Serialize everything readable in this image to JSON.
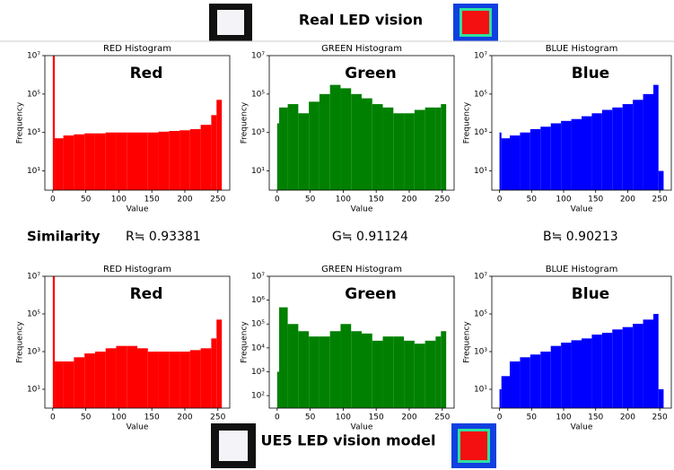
{
  "header": {
    "title": "Real LED vision"
  },
  "footer": {
    "title": "UE5 LED vision model"
  },
  "similarity": {
    "label": "Similarity",
    "values": [
      "R≒ 0.93381",
      "G≒ 0.91124",
      "B≒ 0.90213"
    ]
  },
  "chart_data": [
    {
      "type": "histogram",
      "title": "RED Histogram",
      "annotation": "Red",
      "annotation_color": "#e8141c",
      "color": "#ff0000",
      "xlabel": "Value",
      "ylabel": "Frequency",
      "log_y": true,
      "bins": [
        0,
        3,
        16,
        32,
        48,
        64,
        80,
        96,
        112,
        128,
        144,
        160,
        176,
        192,
        208,
        224,
        240,
        248,
        256
      ],
      "values": [
        10000000,
        500,
        700,
        800,
        900,
        900,
        1000,
        1000,
        1000,
        1000,
        1000,
        1100,
        1200,
        1300,
        1500,
        2500,
        8000,
        50000
      ],
      "xlim": [
        -12,
        268
      ],
      "xticks": [
        0,
        50,
        100,
        150,
        200,
        250
      ],
      "ylim": [
        1,
        10000000
      ],
      "yticks": [
        {
          "value": 10,
          "label": "10¹"
        },
        {
          "value": 1000,
          "label": "10³"
        },
        {
          "value": 100000,
          "label": "10⁵"
        },
        {
          "value": 10000000,
          "label": "10⁷"
        }
      ]
    },
    {
      "type": "histogram",
      "title": "GREEN Histogram",
      "annotation": "Green",
      "annotation_color": "#1aa04a",
      "color": "#008000",
      "xlabel": "Value",
      "ylabel": "Frequency",
      "log_y": true,
      "bins": [
        0,
        3,
        16,
        32,
        48,
        64,
        80,
        96,
        112,
        128,
        144,
        160,
        176,
        192,
        208,
        224,
        240,
        248,
        256
      ],
      "values": [
        3000,
        20000,
        30000,
        10000,
        40000,
        100000,
        300000,
        200000,
        100000,
        60000,
        30000,
        20000,
        10000,
        10000,
        15000,
        20000,
        20000,
        30000
      ],
      "xlim": [
        -12,
        268
      ],
      "xticks": [
        0,
        50,
        100,
        150,
        200,
        250
      ],
      "ylim": [
        1,
        10000000
      ],
      "yticks": [
        {
          "value": 10,
          "label": "10¹"
        },
        {
          "value": 1000,
          "label": "10³"
        },
        {
          "value": 100000,
          "label": "10⁵"
        },
        {
          "value": 10000000,
          "label": "10⁷"
        }
      ]
    },
    {
      "type": "histogram",
      "title": "BLUE Histogram",
      "annotation": "Blue",
      "annotation_color": "#1f6fbf",
      "color": "#0000ff",
      "xlabel": "Value",
      "ylabel": "Frequency",
      "log_y": true,
      "bins": [
        0,
        3,
        16,
        32,
        48,
        64,
        80,
        96,
        112,
        128,
        144,
        160,
        176,
        192,
        208,
        224,
        240,
        248,
        256
      ],
      "values": [
        1000,
        500,
        700,
        1000,
        1500,
        2000,
        3000,
        4000,
        5000,
        7000,
        10000,
        15000,
        20000,
        30000,
        50000,
        100000,
        300000,
        10
      ],
      "xlim": [
        -12,
        268
      ],
      "xticks": [
        0,
        50,
        100,
        150,
        200,
        250
      ],
      "ylim": [
        1,
        10000000
      ],
      "yticks": [
        {
          "value": 10,
          "label": "10¹"
        },
        {
          "value": 1000,
          "label": "10³"
        },
        {
          "value": 100000,
          "label": "10⁵"
        },
        {
          "value": 10000000,
          "label": "10⁷"
        }
      ]
    },
    {
      "type": "histogram",
      "title": "RED Histogram",
      "annotation": "Red",
      "annotation_color": "#e8141c",
      "color": "#ff0000",
      "xlabel": "Value",
      "ylabel": "Frequency",
      "log_y": true,
      "bins": [
        0,
        3,
        16,
        32,
        48,
        64,
        80,
        96,
        112,
        128,
        144,
        160,
        176,
        192,
        208,
        224,
        240,
        248,
        256
      ],
      "values": [
        10000000,
        300,
        300,
        500,
        800,
        1000,
        1500,
        2000,
        2000,
        1500,
        1000,
        1000,
        1000,
        1000,
        1200,
        1500,
        5000,
        50000
      ],
      "xlim": [
        -12,
        268
      ],
      "xticks": [
        0,
        50,
        100,
        150,
        200,
        250
      ],
      "ylim": [
        1,
        10000000
      ],
      "yticks": [
        {
          "value": 10,
          "label": "10¹"
        },
        {
          "value": 1000,
          "label": "10³"
        },
        {
          "value": 100000,
          "label": "10⁵"
        },
        {
          "value": 10000000,
          "label": "10⁷"
        }
      ]
    },
    {
      "type": "histogram",
      "title": "GREEN Histogram",
      "annotation": "Green",
      "annotation_color": "#1aa04a",
      "color": "#008000",
      "xlabel": "Value",
      "ylabel": "Frequency",
      "log_y": true,
      "bins": [
        0,
        3,
        16,
        32,
        48,
        64,
        80,
        96,
        112,
        128,
        144,
        160,
        176,
        192,
        208,
        224,
        240,
        248,
        256
      ],
      "values": [
        1000,
        500000,
        100000,
        50000,
        30000,
        30000,
        50000,
        100000,
        50000,
        40000,
        20000,
        30000,
        30000,
        20000,
        15000,
        20000,
        30000,
        50000
      ],
      "xlim": [
        -12,
        268
      ],
      "xticks": [
        0,
        50,
        100,
        150,
        200,
        250
      ],
      "ylim": [
        30,
        10000000
      ],
      "yticks": [
        {
          "value": 100,
          "label": "10²"
        },
        {
          "value": 1000,
          "label": "10³"
        },
        {
          "value": 10000,
          "label": "10⁴"
        },
        {
          "value": 100000,
          "label": "10⁵"
        },
        {
          "value": 1000000,
          "label": "10⁶"
        },
        {
          "value": 10000000,
          "label": "10⁷"
        }
      ]
    },
    {
      "type": "histogram",
      "title": "BLUE Histogram",
      "annotation": "Blue",
      "annotation_color": "#1f6fbf",
      "color": "#0000ff",
      "xlabel": "Value",
      "ylabel": "Frequency",
      "log_y": true,
      "bins": [
        0,
        3,
        16,
        32,
        48,
        64,
        80,
        96,
        112,
        128,
        144,
        160,
        176,
        192,
        208,
        224,
        240,
        248,
        256
      ],
      "values": [
        10,
        50,
        300,
        500,
        700,
        1000,
        2000,
        3000,
        4000,
        5000,
        8000,
        10000,
        15000,
        20000,
        30000,
        50000,
        100000,
        10
      ],
      "xlim": [
        -12,
        268
      ],
      "xticks": [
        0,
        50,
        100,
        150,
        200,
        250
      ],
      "ylim": [
        1,
        10000000
      ],
      "yticks": [
        {
          "value": 10,
          "label": "10¹"
        },
        {
          "value": 1000,
          "label": "10³"
        },
        {
          "value": 100000,
          "label": "10⁵"
        },
        {
          "value": 10000000,
          "label": "10⁷"
        }
      ]
    }
  ]
}
